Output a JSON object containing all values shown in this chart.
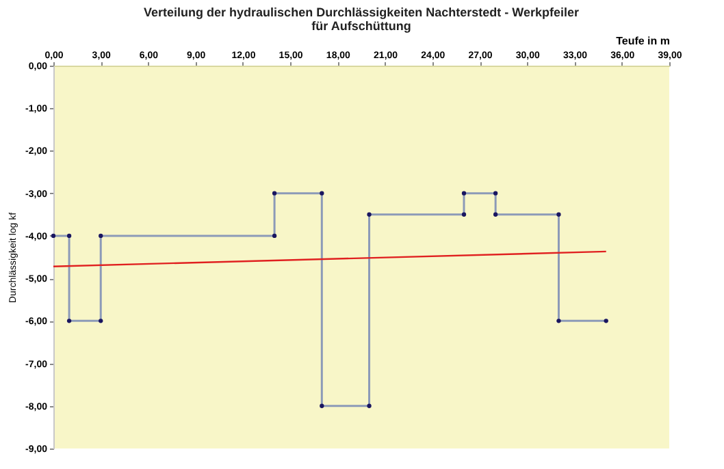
{
  "chart_data": {
    "type": "line",
    "title": "Verteilung der hydraulischen Durchlässigkeiten Nachterstedt - Werkpfeiler",
    "subtitle": "für Aufschüttung",
    "xlabel": "Teufe in m",
    "ylabel": "Durchlässigkeit log kf",
    "xlim": [
      0,
      39
    ],
    "ylim": [
      -9,
      0
    ],
    "xticks": [
      {
        "value": 0,
        "label": "0,00"
      },
      {
        "value": 3,
        "label": "3,00"
      },
      {
        "value": 6,
        "label": "6,00"
      },
      {
        "value": 9,
        "label": "9,00"
      },
      {
        "value": 12,
        "label": "12,00"
      },
      {
        "value": 15,
        "label": "15,00"
      },
      {
        "value": 18,
        "label": "18,00"
      },
      {
        "value": 21,
        "label": "21,00"
      },
      {
        "value": 24,
        "label": "24,00"
      },
      {
        "value": 27,
        "label": "27,00"
      },
      {
        "value": 30,
        "label": "30,00"
      },
      {
        "value": 33,
        "label": "33,00"
      },
      {
        "value": 36,
        "label": "36,00"
      },
      {
        "value": 39,
        "label": "39,00"
      }
    ],
    "yticks": [
      {
        "value": 0,
        "label": "0,00"
      },
      {
        "value": -1,
        "label": "-1,00"
      },
      {
        "value": -2,
        "label": "-2,00"
      },
      {
        "value": -3,
        "label": "-3,00"
      },
      {
        "value": -4,
        "label": "-4,00"
      },
      {
        "value": -5,
        "label": "-5,00"
      },
      {
        "value": -6,
        "label": "-6,00"
      },
      {
        "value": -7,
        "label": "-7,00"
      },
      {
        "value": -8,
        "label": "-8,00"
      },
      {
        "value": -9,
        "label": "-9,00"
      }
    ],
    "grid": false,
    "series": [
      {
        "color": "#8c9ab8",
        "marker": "circle",
        "x": [
          0,
          1,
          1,
          3,
          3,
          14,
          14,
          17,
          17,
          20,
          20,
          26,
          26,
          28,
          28,
          32,
          32,
          35
        ],
        "values": [
          -4,
          -4,
          -6,
          -6,
          -4,
          -4,
          -3,
          -3,
          -8,
          -8,
          -3.5,
          -3.5,
          -3,
          -3,
          -3.5,
          -3.5,
          -6,
          -6
        ]
      },
      {
        "color": "#e02020",
        "marker": "none",
        "x": [
          0,
          35
        ],
        "values": [
          -4.72,
          -4.37
        ]
      }
    ]
  }
}
